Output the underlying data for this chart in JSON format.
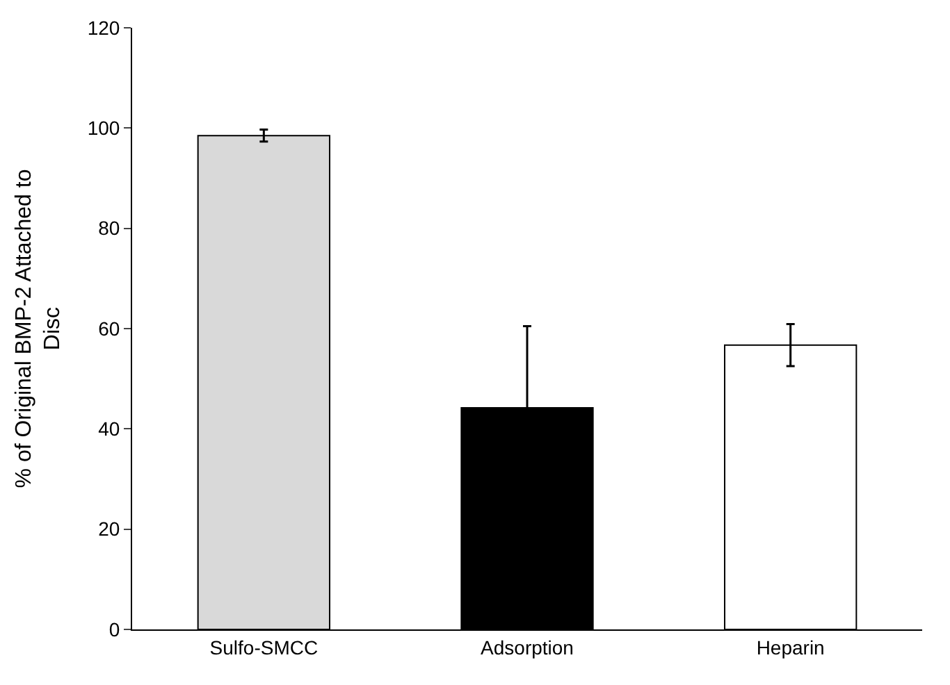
{
  "chart_data": {
    "type": "bar",
    "ylabel": "% of Original BMP-2 Attached to Disc",
    "categories": [
      "Sulfo-SMCC",
      "Adsorption",
      "Heparin"
    ],
    "values": [
      98.5,
      44.2,
      56.7
    ],
    "colors": [
      "#d9d9d9",
      "#000000",
      "#ffffff"
    ],
    "errors": [
      1.2,
      16.3,
      4.2
    ],
    "ylim": [
      0,
      120
    ],
    "yticks": [
      0,
      20,
      40,
      60,
      80,
      100,
      120
    ]
  }
}
